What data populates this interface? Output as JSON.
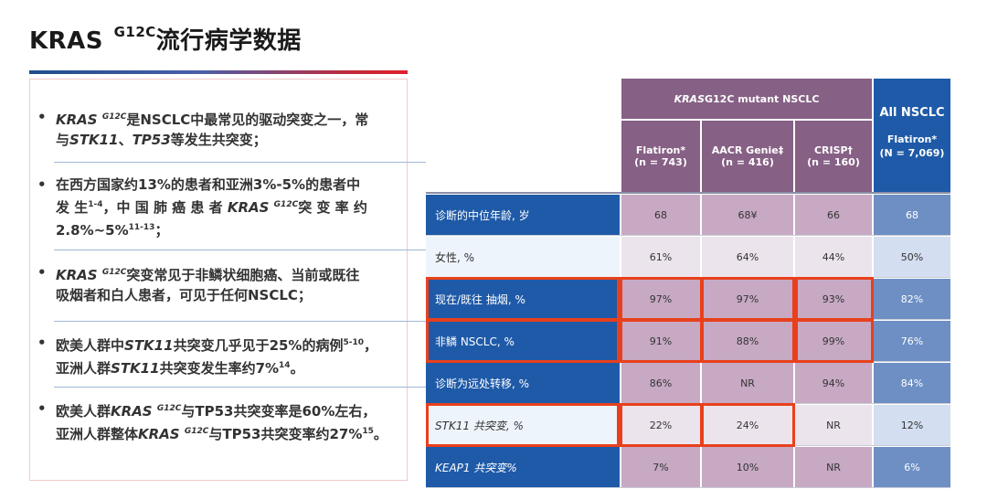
{
  "title": {
    "main": "KRAS",
    "sup": "G12C",
    "rest": "流行病学数据"
  },
  "bullets": [
    {
      "lines": [
        [
          {
            "t": "KRAS ",
            "i": true
          },
          {
            "t": "G12C",
            "i": true,
            "sup": true
          },
          {
            "t": "是NSCLC中最常见的驱动突变之一，常"
          }
        ],
        [
          {
            "t": "与"
          },
          {
            "t": "STK11",
            "i": true
          },
          {
            "t": "、"
          },
          {
            "t": "TP53",
            "i": true
          },
          {
            "t": "等发生共突变；"
          }
        ]
      ]
    },
    {
      "lines": [
        [
          {
            "t": "在西方国家约13%的患者和亚洲3%-5%的患者中"
          }
        ],
        [
          {
            "t": "发 生"
          },
          {
            "t": "1-4",
            "sup": true
          },
          {
            "t": "，中 国 肺 癌 患 者 "
          },
          {
            "t": "KRAS",
            "i": true
          },
          {
            "t": " "
          },
          {
            "t": "G12C",
            "i": true,
            "sup": true
          },
          {
            "t": "突 变 率 约"
          }
        ],
        [
          {
            "t": "2.8%~5%"
          },
          {
            "t": "11-13",
            "sup": true
          },
          {
            "t": "；"
          }
        ]
      ]
    },
    {
      "lines": [
        [
          {
            "t": "KRAS ",
            "i": true
          },
          {
            "t": "G12C",
            "i": true,
            "sup": true
          },
          {
            "t": "突变常见于非鳞状细胞癌、当前或既往"
          }
        ],
        [
          {
            "t": "吸烟者和白人患者，可见于任何NSCLC；"
          }
        ]
      ]
    },
    {
      "lines": [
        [
          {
            "t": "欧美人群中"
          },
          {
            "t": "STK11",
            "i": true
          },
          {
            "t": "共突变几乎见于25%的病例"
          },
          {
            "t": "5-10",
            "sup": true
          },
          {
            "t": "，"
          }
        ],
        [
          {
            "t": "亚洲人群"
          },
          {
            "t": "STK11",
            "i": true
          },
          {
            "t": "共突变发生率约7%"
          },
          {
            "t": "14",
            "sup": true
          },
          {
            "t": "。"
          }
        ]
      ]
    },
    {
      "lines": [
        [
          {
            "t": "欧美人群"
          },
          {
            "t": "KRAS",
            "i": true
          },
          {
            "t": " "
          },
          {
            "t": "G12C",
            "i": true,
            "sup": true
          },
          {
            "t": "与TP53共突变率是60%左右，"
          }
        ],
        [
          {
            "t": "亚洲人群整体"
          },
          {
            "t": "KRAS",
            "i": true
          },
          {
            "t": " "
          },
          {
            "t": "G12C",
            "i": true,
            "sup": true
          },
          {
            "t": "与TP53共突变率约27%"
          },
          {
            "t": "15",
            "sup": true
          },
          {
            "t": "。"
          }
        ]
      ]
    }
  ],
  "table": {
    "group_header": {
      "italic": "KRAS",
      "rest": " G12C mutant NSCLC"
    },
    "all_header": "All NSCLC",
    "columns": [
      {
        "name": "Flatiron*",
        "n": "(n = 743)"
      },
      {
        "name": "AACR Genie‡",
        "n": "(n = 416)"
      },
      {
        "name": "CRISP†",
        "n": "(n = 160)"
      }
    ],
    "all_column": {
      "name": "Flatiron*",
      "n": "(N = 7,069)"
    },
    "rows": [
      {
        "label": "诊断的中位年龄, 岁",
        "values": [
          "68",
          "68¥",
          "66"
        ],
        "all": "68"
      },
      {
        "label": "女性, %",
        "values": [
          "61%",
          "64%",
          "44%"
        ],
        "all": "50%"
      },
      {
        "label": "现在/既往 抽烟, %",
        "values": [
          "97%",
          "97%",
          "93%"
        ],
        "all": "82%"
      },
      {
        "label": "非鳞 NSCLC, %",
        "values": [
          "91%",
          "88%",
          "99%"
        ],
        "all": "76%"
      },
      {
        "label": "诊断为远处转移, %",
        "values": [
          "86%",
          "NR",
          "94%"
        ],
        "all": "84%"
      },
      {
        "label": "STK11 共突变, %",
        "values": [
          "22%",
          "24%",
          "NR"
        ],
        "all": "12%"
      },
      {
        "label": "KEAP1 共突变%",
        "values": [
          "7%",
          "10%",
          "NR"
        ],
        "all": "6%"
      }
    ]
  },
  "colors": {
    "purple_header": "#866085",
    "blue": "#1e5aa8",
    "highlight": "#e8401c"
  }
}
